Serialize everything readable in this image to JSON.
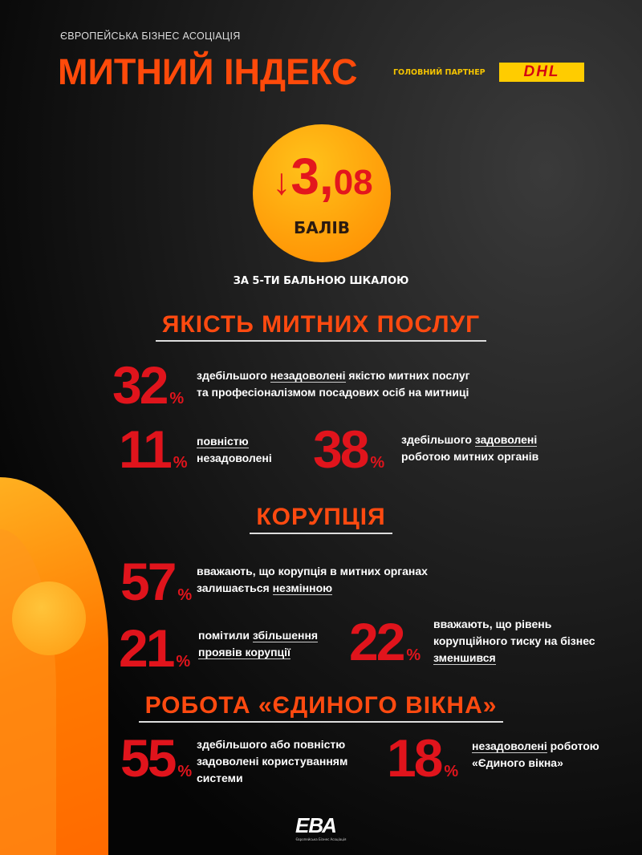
{
  "header": {
    "organization": "ЄВРОПЕЙСЬКА БІЗНЕС АСОЦІАЦІЯ",
    "title": "МИТНИЙ ІНДЕКС",
    "partner_label": "ГОЛОВНИЙ ПАРТНЕР",
    "partner_logo": "DHL"
  },
  "score": {
    "arrow": "↓",
    "integer": "3,",
    "decimal": "08",
    "unit": "БАЛІВ",
    "scale": "ЗА 5-ТИ БАЛЬНОЮ ШКАЛОЮ",
    "direction": "down"
  },
  "sections": [
    {
      "title": "ЯКІСТЬ МИТНИХ ПОСЛУГ",
      "stats": [
        {
          "value": "32",
          "pct": "%",
          "l1a": "здебільшого ",
          "l1u": "незадоволені",
          "l1b": " якістю митних послуг",
          "l2": "та професіоналізмом посадових осіб на митниці"
        },
        {
          "value": "11",
          "pct": "%",
          "l1u": "повністю",
          "l2": "незадоволені"
        },
        {
          "value": "38",
          "pct": "%",
          "l1a": "здебільшого ",
          "l1u": "задоволені",
          "l2": "роботою митних органів"
        }
      ]
    },
    {
      "title": "КОРУПЦІЯ",
      "stats": [
        {
          "value": "57",
          "pct": "%",
          "l1": "вважають, що корупція в митних органах",
          "l2a": "залишається ",
          "l2u": "незмінною"
        },
        {
          "value": "21",
          "pct": "%",
          "l1a": "помітили ",
          "l1u": "збільшення",
          "l2u": "проявів корупції"
        },
        {
          "value": "22",
          "pct": "%",
          "l1": "вважають, що рівень",
          "l2": "корупційного тиску на бізнес",
          "l3u": "зменшився"
        }
      ]
    },
    {
      "title": "РОБОТА «ЄДИНОГО ВІКНА»",
      "stats": [
        {
          "value": "55",
          "pct": "%",
          "l1": "здебільшого або повністю",
          "l2": "задоволені користуванням",
          "l3": "системи"
        },
        {
          "value": "18",
          "pct": "%",
          "l1u": "незадоволені",
          "l1b": " роботою",
          "l2": "«Єдиного вікна»"
        }
      ]
    }
  ],
  "footer": {
    "logo": "ЕВА",
    "logo_sub": "Європейська Бізнес Асоціація"
  },
  "colors": {
    "accent": "#ff4a10",
    "stat_red": "#e0141c",
    "circle": "#ffa00f",
    "partner_yellow": "#ffcc00"
  }
}
